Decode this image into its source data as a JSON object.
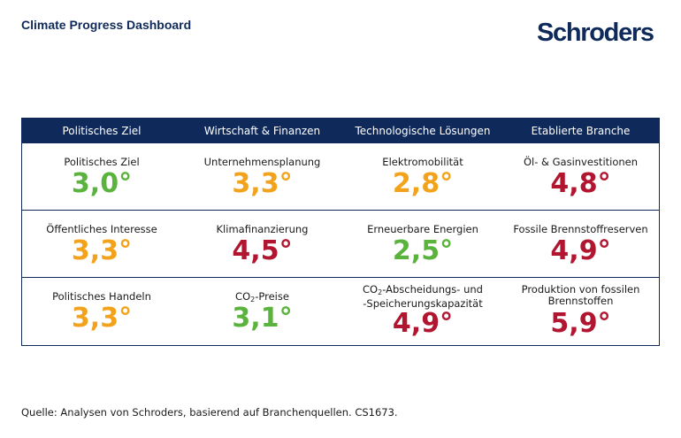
{
  "header": {
    "title": "Climate Progress Dashboard",
    "brand": "Schroders"
  },
  "colors": {
    "navy": "#0f2a5a",
    "green": "#5ab33c",
    "orange": "#f3a21b",
    "red": "#b2152f"
  },
  "table": {
    "columns": [
      "Politisches Ziel",
      "Wirtschaft & Finanzen",
      "Technologische Lösungen",
      "Etablierte Branche"
    ],
    "rows": [
      [
        {
          "label": "Politisches Ziel",
          "value": "3,0°",
          "status": "green"
        },
        {
          "label": "Unternehmensplanung",
          "value": "3,3°",
          "status": "orange"
        },
        {
          "label": "Elektromobilität",
          "value": "2,8°",
          "status": "orange"
        },
        {
          "label": "Öl- & Gasinvestitionen",
          "value": "4,8°",
          "status": "red"
        }
      ],
      [
        {
          "label": "Öffentliches Interesse",
          "value": "3,3°",
          "status": "orange"
        },
        {
          "label": "Klimafinanzierung",
          "value": "4,5°",
          "status": "red"
        },
        {
          "label": "Erneuerbare Energien",
          "value": "2,5°",
          "status": "green"
        },
        {
          "label": "Fossile Brennstoffreserven",
          "value": "4,9°",
          "status": "red"
        }
      ],
      [
        {
          "label": "Politisches Handeln",
          "value": "3,3°",
          "status": "orange"
        },
        {
          "label_pre": "CO",
          "label_sub": "2",
          "label_post": "-Preise",
          "value": "3,1°",
          "status": "green"
        },
        {
          "label_line1_pre": "CO",
          "label_sub": "2",
          "label_line1_post": "-Abscheidungs- und",
          "label_line2": "-Speicherungskapazität",
          "value": "4,9°",
          "status": "red"
        },
        {
          "label_line1": "Produktion von fossilen",
          "label_line2": "Brennstoffen",
          "value": "5,9°",
          "status": "red"
        }
      ]
    ]
  },
  "footer": {
    "source": "Quelle: Analysen von Schroders, basierend auf Branchenquellen. CS1673."
  }
}
